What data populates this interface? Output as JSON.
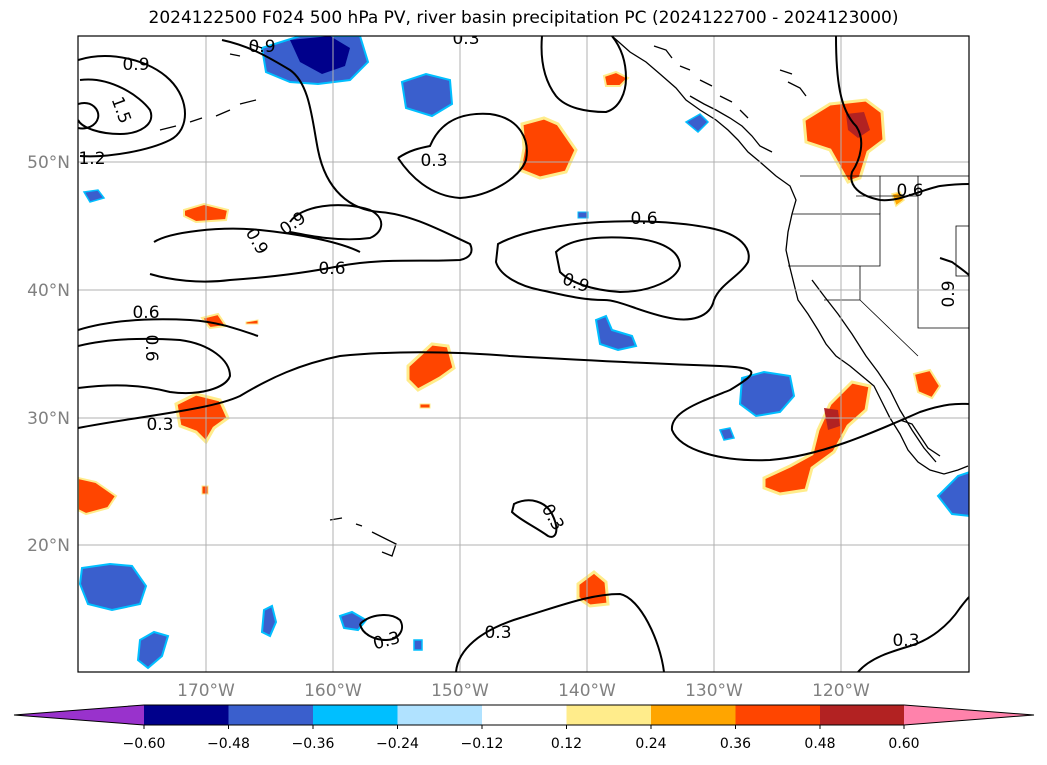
{
  "title": "2024122500 F024 500 hPa PV, river basin precipitation PC (2024122700 - 2024123000)",
  "lat_labels": [
    "50°N",
    "40°N",
    "30°N",
    "20°N"
  ],
  "lon_labels": [
    "170°W",
    "160°W",
    "150°W",
    "140°W",
    "130°W",
    "120°W"
  ],
  "contour_labels": [
    "0.9",
    "0.3",
    "0.9",
    "1.5",
    "1.2",
    "0.3",
    "0.6",
    "0.9",
    "0.9",
    "0.6",
    "0.9",
    "0.6",
    "0.6",
    "0.9",
    "0.6",
    "0.3",
    "0.3",
    "0.3",
    "0.3",
    "0.3"
  ],
  "colorbar": {
    "ticks": [
      "−0.60",
      "−0.48",
      "−0.36",
      "−0.24",
      "−0.12",
      "0.12",
      "0.24",
      "0.36",
      "0.48",
      "0.60"
    ],
    "colors": [
      "#9932cc",
      "#00008b",
      "#3a5fcd",
      "#00bfff",
      "#b0e2ff",
      "#ffffff",
      "#ffec8b",
      "#ffa500",
      "#ff4500",
      "#b22222",
      "#ff82ab"
    ]
  },
  "map_colors": {
    "pos_strong": "#ff4500",
    "pos_edge": "#ffa500",
    "pos_weak": "#ffec8b",
    "pos_max": "#b22222",
    "neg_strong": "#3a5fcd",
    "neg_edge": "#00bfff",
    "neg_max": "#00008b"
  }
}
